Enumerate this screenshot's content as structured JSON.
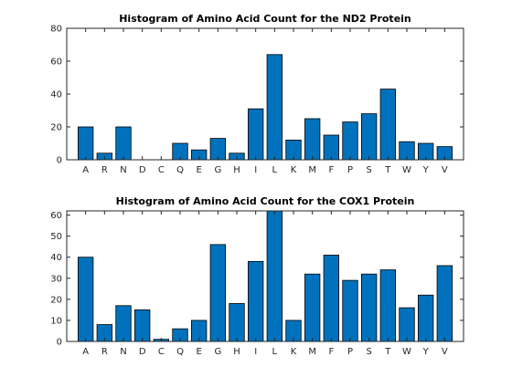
{
  "chart_data": [
    {
      "type": "bar",
      "title": "Histogram of Amino Acid Count for the ND2 Protein",
      "xlabel": "",
      "ylabel": "",
      "categories": [
        "A",
        "R",
        "N",
        "D",
        "C",
        "Q",
        "E",
        "G",
        "H",
        "I",
        "L",
        "K",
        "M",
        "F",
        "P",
        "S",
        "T",
        "W",
        "Y",
        "V"
      ],
      "values": [
        20,
        4,
        20,
        0,
        0,
        10,
        6,
        13,
        4,
        31,
        64,
        12,
        25,
        15,
        23,
        28,
        43,
        11,
        10,
        8
      ],
      "ylim": [
        0,
        80
      ],
      "yticks": [
        0,
        20,
        40,
        60,
        80
      ],
      "grid": false,
      "bar_color": "#0072BD"
    },
    {
      "type": "bar",
      "title": "Histogram of Amino Acid Count for the COX1 Protein",
      "xlabel": "",
      "ylabel": "",
      "categories": [
        "A",
        "R",
        "N",
        "D",
        "C",
        "Q",
        "E",
        "G",
        "H",
        "I",
        "L",
        "K",
        "M",
        "F",
        "P",
        "S",
        "T",
        "W",
        "Y",
        "V"
      ],
      "values": [
        40,
        8,
        17,
        15,
        1,
        6,
        10,
        46,
        18,
        38,
        62,
        10,
        32,
        41,
        29,
        32,
        34,
        16,
        22,
        36
      ],
      "ylim": [
        0,
        62
      ],
      "yticks": [
        0,
        10,
        20,
        30,
        40,
        50,
        60
      ],
      "grid": false,
      "bar_color": "#0072BD"
    }
  ]
}
